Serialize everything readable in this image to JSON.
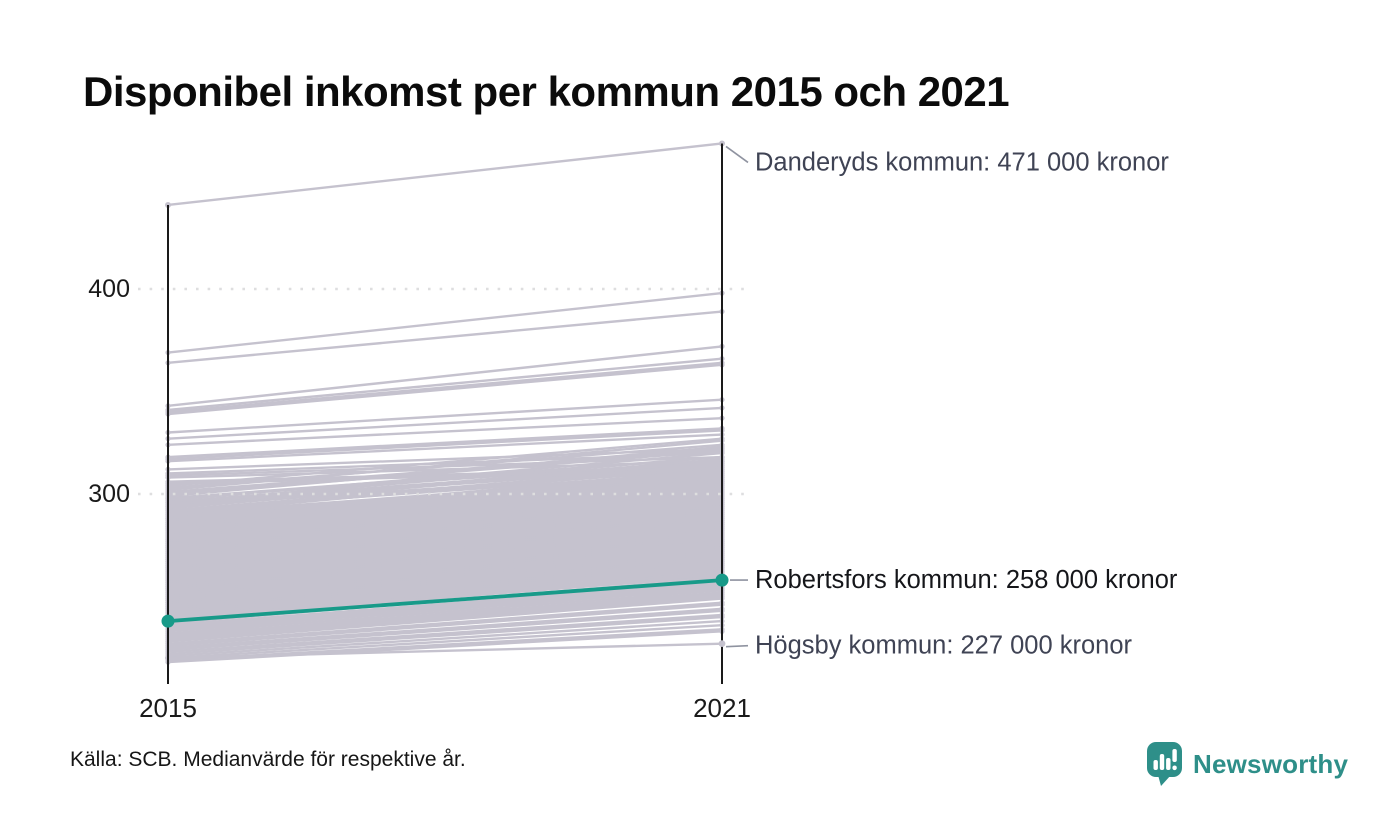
{
  "title": "Disponibel inkomst per kommun 2015 och 2021",
  "source": "Källa: SCB. Medianvärde för respektive år.",
  "branding": {
    "name": "Newsworthy",
    "icon": "newsworthy-speech-bubble-chart-icon"
  },
  "colors": {
    "highlight": "#189a89",
    "background_line": "#c5c2ce",
    "axis": "#1a1a1a",
    "grid": "#dededf",
    "tick_text": "#1a1a1a",
    "annotation_text": "#3f4354",
    "highlight_text": "#15161a",
    "leader": "#8f93a0",
    "brand_teal": "#2e8f89"
  },
  "chart_data": {
    "type": "line",
    "subtype": "slope-chart",
    "title": "Disponibel inkomst per kommun 2015 och 2021",
    "x_categories": [
      "2015",
      "2021"
    ],
    "y_ticks": [
      400,
      300
    ],
    "unit": "tusen kronor",
    "grid": "dotted-horizontal",
    "legend_position": "none",
    "annotations": [
      {
        "id": "danderyd",
        "label": "Danderyds kommun: 471 000 kronor",
        "values": [
          441,
          471
        ],
        "highlight": false,
        "label_dy": 19
      },
      {
        "id": "robertsfors",
        "label": "Robertsfors kommun: 258 000 kronor",
        "values": [
          238,
          258
        ],
        "highlight": true,
        "label_dy": 0
      },
      {
        "id": "hogsby",
        "label": "Högsby kommun: 227 000 kronor",
        "values": [
          220,
          227
        ],
        "highlight": false,
        "label_dy": 2
      }
    ],
    "background_lines": [
      [
        369,
        398
      ],
      [
        364,
        389
      ],
      [
        343,
        372
      ],
      [
        341,
        366
      ],
      [
        340,
        364
      ],
      [
        339,
        363
      ],
      [
        330,
        346
      ],
      [
        327,
        342
      ],
      [
        324,
        337
      ],
      [
        318,
        332
      ],
      [
        317,
        331
      ],
      [
        316,
        329
      ],
      [
        312,
        322
      ],
      [
        310,
        320
      ],
      [
        309,
        318
      ],
      [
        308,
        316
      ],
      [
        306,
        313
      ],
      [
        305,
        312
      ],
      [
        304,
        327
      ],
      [
        303,
        324
      ],
      [
        302,
        326
      ],
      [
        301,
        322
      ],
      [
        300,
        321
      ],
      [
        299,
        323
      ],
      [
        298,
        318
      ],
      [
        298,
        316
      ],
      [
        297,
        320
      ],
      [
        296,
        315
      ],
      [
        296,
        318
      ],
      [
        295,
        314
      ],
      [
        294,
        317
      ],
      [
        294,
        312
      ],
      [
        293,
        316
      ],
      [
        292,
        311
      ],
      [
        292,
        314
      ],
      [
        291,
        313
      ],
      [
        290,
        310
      ],
      [
        290,
        315
      ],
      [
        289,
        309
      ],
      [
        288,
        312
      ],
      [
        288,
        308
      ],
      [
        287,
        311
      ],
      [
        286,
        307
      ],
      [
        286,
        310
      ],
      [
        285,
        306
      ],
      [
        285,
        309
      ],
      [
        284,
        305
      ],
      [
        284,
        308
      ],
      [
        283,
        304
      ],
      [
        283,
        307
      ],
      [
        282,
        303
      ],
      [
        282,
        306
      ],
      [
        281,
        302
      ],
      [
        281,
        305
      ],
      [
        280,
        301
      ],
      [
        280,
        304
      ],
      [
        279,
        300
      ],
      [
        279,
        303
      ],
      [
        278,
        299
      ],
      [
        278,
        302
      ],
      [
        277,
        298
      ],
      [
        277,
        301
      ],
      [
        276,
        297
      ],
      [
        276,
        300
      ],
      [
        275,
        296
      ],
      [
        275,
        299
      ],
      [
        274,
        295
      ],
      [
        274,
        298
      ],
      [
        273,
        294
      ],
      [
        273,
        297
      ],
      [
        272,
        293
      ],
      [
        272,
        296
      ],
      [
        271,
        292
      ],
      [
        271,
        295
      ],
      [
        270,
        291
      ],
      [
        270,
        294
      ],
      [
        269,
        290
      ],
      [
        269,
        293
      ],
      [
        268,
        289
      ],
      [
        268,
        292
      ],
      [
        267,
        288
      ],
      [
        267,
        291
      ],
      [
        266,
        287
      ],
      [
        266,
        290
      ],
      [
        265,
        286
      ],
      [
        265,
        289
      ],
      [
        264,
        285
      ],
      [
        264,
        288
      ],
      [
        263,
        284
      ],
      [
        263,
        287
      ],
      [
        262,
        283
      ],
      [
        262,
        286
      ],
      [
        261,
        282
      ],
      [
        261,
        285
      ],
      [
        260,
        281
      ],
      [
        260,
        284
      ],
      [
        259,
        280
      ],
      [
        259,
        283
      ],
      [
        258,
        279
      ],
      [
        258,
        282
      ],
      [
        257,
        278
      ],
      [
        257,
        281
      ],
      [
        256,
        277
      ],
      [
        256,
        280
      ],
      [
        255,
        276
      ],
      [
        255,
        279
      ],
      [
        254,
        275
      ],
      [
        254,
        278
      ],
      [
        253,
        274
      ],
      [
        253,
        277
      ],
      [
        252,
        273
      ],
      [
        252,
        276
      ],
      [
        251,
        272
      ],
      [
        251,
        275
      ],
      [
        250,
        271
      ],
      [
        250,
        274
      ],
      [
        249,
        270
      ],
      [
        249,
        273
      ],
      [
        248,
        269
      ],
      [
        248,
        272
      ],
      [
        247,
        268
      ],
      [
        247,
        271
      ],
      [
        246,
        267
      ],
      [
        246,
        270
      ],
      [
        245,
        266
      ],
      [
        245,
        269
      ],
      [
        244,
        265
      ],
      [
        244,
        268
      ],
      [
        243,
        264
      ],
      [
        243,
        267
      ],
      [
        242,
        263
      ],
      [
        242,
        266
      ],
      [
        241,
        262
      ],
      [
        241,
        265
      ],
      [
        240,
        261
      ],
      [
        240,
        264
      ],
      [
        239,
        260
      ],
      [
        239,
        262
      ],
      [
        238,
        261
      ],
      [
        237,
        259
      ],
      [
        236,
        257
      ],
      [
        235,
        256
      ],
      [
        234,
        255
      ],
      [
        233,
        254
      ],
      [
        232,
        253
      ],
      [
        231,
        252
      ],
      [
        230,
        251
      ],
      [
        229,
        250
      ],
      [
        228,
        249
      ],
      [
        227,
        247
      ],
      [
        226,
        246
      ],
      [
        225,
        244
      ],
      [
        224,
        243
      ],
      [
        223,
        241
      ],
      [
        222,
        240
      ],
      [
        221,
        238
      ],
      [
        220,
        236
      ],
      [
        219,
        234
      ],
      [
        218,
        233
      ]
    ]
  }
}
